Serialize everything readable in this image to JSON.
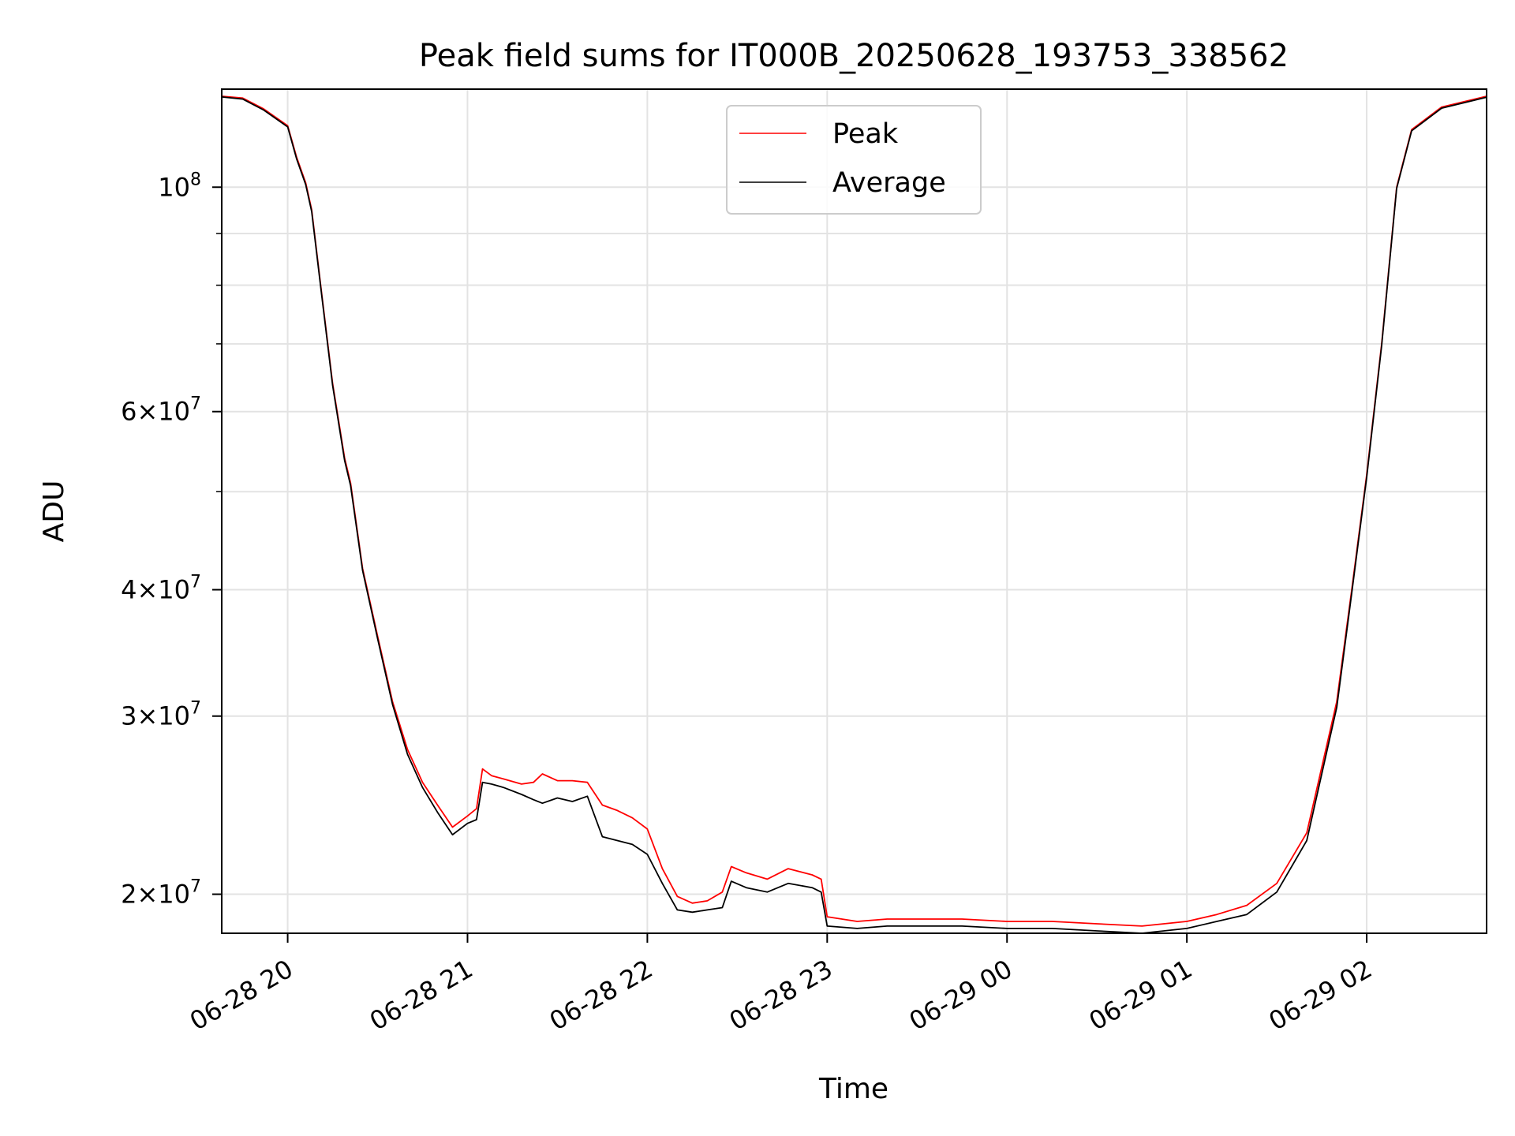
{
  "chart_data": {
    "type": "line",
    "title": "Peak field sums for IT000B_20250628_193753_338562",
    "xlabel": "Time",
    "ylabel": "ADU",
    "x_scale": "time",
    "y_scale": "log",
    "xlim": [
      "2025-06-28 19:38",
      "2025-06-29 02:40"
    ],
    "ylim": [
      18300000,
      125000000
    ],
    "grid": true,
    "legend_position": "top-center",
    "x_ticks": [
      {
        "value": "2025-06-28 20:00",
        "label": "06-28 20"
      },
      {
        "value": "2025-06-28 21:00",
        "label": "06-28 21"
      },
      {
        "value": "2025-06-28 22:00",
        "label": "06-28 22"
      },
      {
        "value": "2025-06-28 23:00",
        "label": "06-28 23"
      },
      {
        "value": "2025-06-29 00:00",
        "label": "06-29 00"
      },
      {
        "value": "2025-06-29 01:00",
        "label": "06-29 01"
      },
      {
        "value": "2025-06-29 02:00",
        "label": "06-29 02"
      }
    ],
    "y_ticks_major": [
      {
        "value": 20000000,
        "mant": "2",
        "exp": "7"
      },
      {
        "value": 30000000,
        "mant": "3",
        "exp": "7"
      },
      {
        "value": 40000000,
        "mant": "4",
        "exp": "7"
      },
      {
        "value": 60000000,
        "mant": "6",
        "exp": "7"
      },
      {
        "value": 100000000,
        "mant": "",
        "exp": "8"
      }
    ],
    "y_ticks_minor": [
      50000000,
      70000000,
      80000000,
      90000000
    ],
    "series": [
      {
        "name": "Peak",
        "color": "#ff0000",
        "points": [
          [
            "2025-06-28 19:38",
            123000000
          ],
          [
            "2025-06-28 19:45",
            122500000
          ],
          [
            "2025-06-28 19:52",
            119500000
          ],
          [
            "2025-06-28 20:00",
            115000000
          ],
          [
            "2025-06-28 20:03",
            107000000
          ],
          [
            "2025-06-28 20:06",
            101000000
          ],
          [
            "2025-06-28 20:08",
            95000000
          ],
          [
            "2025-06-28 20:11",
            80000000
          ],
          [
            "2025-06-28 20:15",
            64000000
          ],
          [
            "2025-06-28 20:19",
            54000000
          ],
          [
            "2025-06-28 20:21",
            51000000
          ],
          [
            "2025-06-28 20:25",
            42000000
          ],
          [
            "2025-06-28 20:30",
            36000000
          ],
          [
            "2025-06-28 20:35",
            31000000
          ],
          [
            "2025-06-28 20:40",
            27800000
          ],
          [
            "2025-06-28 20:45",
            25800000
          ],
          [
            "2025-06-28 20:50",
            24500000
          ],
          [
            "2025-06-28 20:55",
            23300000
          ],
          [
            "2025-06-28 21:00",
            23900000
          ],
          [
            "2025-06-28 21:03",
            24300000
          ],
          [
            "2025-06-28 21:05",
            26600000
          ],
          [
            "2025-06-28 21:08",
            26200000
          ],
          [
            "2025-06-28 21:12",
            26000000
          ],
          [
            "2025-06-28 21:18",
            25700000
          ],
          [
            "2025-06-28 21:22",
            25800000
          ],
          [
            "2025-06-28 21:25",
            26300000
          ],
          [
            "2025-06-28 21:30",
            25900000
          ],
          [
            "2025-06-28 21:35",
            25900000
          ],
          [
            "2025-06-28 21:40",
            25800000
          ],
          [
            "2025-06-28 21:45",
            24500000
          ],
          [
            "2025-06-28 21:50",
            24200000
          ],
          [
            "2025-06-28 21:55",
            23800000
          ],
          [
            "2025-06-28 22:00",
            23200000
          ],
          [
            "2025-06-28 22:05",
            21200000
          ],
          [
            "2025-06-28 22:10",
            19900000
          ],
          [
            "2025-06-28 22:15",
            19600000
          ],
          [
            "2025-06-28 22:20",
            19700000
          ],
          [
            "2025-06-28 22:25",
            20100000
          ],
          [
            "2025-06-28 22:28",
            21300000
          ],
          [
            "2025-06-28 22:33",
            21000000
          ],
          [
            "2025-06-28 22:40",
            20700000
          ],
          [
            "2025-06-28 22:47",
            21200000
          ],
          [
            "2025-06-28 22:55",
            20900000
          ],
          [
            "2025-06-28 22:58",
            20700000
          ],
          [
            "2025-06-28 23:00",
            19000000
          ],
          [
            "2025-06-28 23:10",
            18800000
          ],
          [
            "2025-06-28 23:20",
            18900000
          ],
          [
            "2025-06-28 23:30",
            18900000
          ],
          [
            "2025-06-28 23:45",
            18900000
          ],
          [
            "2025-06-29 00:00",
            18800000
          ],
          [
            "2025-06-29 00:15",
            18800000
          ],
          [
            "2025-06-29 00:30",
            18700000
          ],
          [
            "2025-06-29 00:45",
            18600000
          ],
          [
            "2025-06-29 01:00",
            18800000
          ],
          [
            "2025-06-29 01:10",
            19100000
          ],
          [
            "2025-06-29 01:20",
            19500000
          ],
          [
            "2025-06-29 01:30",
            20500000
          ],
          [
            "2025-06-29 01:40",
            23000000
          ],
          [
            "2025-06-29 01:50",
            31000000
          ],
          [
            "2025-06-29 01:55",
            40000000
          ],
          [
            "2025-06-29 02:00",
            52000000
          ],
          [
            "2025-06-29 02:05",
            70000000
          ],
          [
            "2025-06-29 02:10",
            100000000
          ],
          [
            "2025-06-29 02:15",
            114000000
          ],
          [
            "2025-06-29 02:25",
            120000000
          ],
          [
            "2025-06-29 02:40",
            123000000
          ]
        ]
      },
      {
        "name": "Average",
        "color": "#000000",
        "points": [
          [
            "2025-06-28 19:38",
            122800000
          ],
          [
            "2025-06-28 19:45",
            122200000
          ],
          [
            "2025-06-28 19:52",
            119200000
          ],
          [
            "2025-06-28 20:00",
            114700000
          ],
          [
            "2025-06-28 20:03",
            106600000
          ],
          [
            "2025-06-28 20:06",
            100600000
          ],
          [
            "2025-06-28 20:08",
            94600000
          ],
          [
            "2025-06-28 20:11",
            79700000
          ],
          [
            "2025-06-28 20:15",
            63700000
          ],
          [
            "2025-06-28 20:19",
            53700000
          ],
          [
            "2025-06-28 20:21",
            50700000
          ],
          [
            "2025-06-28 20:25",
            41800000
          ],
          [
            "2025-06-28 20:30",
            35800000
          ],
          [
            "2025-06-28 20:35",
            30800000
          ],
          [
            "2025-06-28 20:40",
            27500000
          ],
          [
            "2025-06-28 20:45",
            25500000
          ],
          [
            "2025-06-28 20:50",
            24100000
          ],
          [
            "2025-06-28 20:55",
            22900000
          ],
          [
            "2025-06-28 21:00",
            23500000
          ],
          [
            "2025-06-28 21:03",
            23700000
          ],
          [
            "2025-06-28 21:05",
            25800000
          ],
          [
            "2025-06-28 21:08",
            25700000
          ],
          [
            "2025-06-28 21:12",
            25500000
          ],
          [
            "2025-06-28 21:18",
            25100000
          ],
          [
            "2025-06-28 21:22",
            24800000
          ],
          [
            "2025-06-28 21:25",
            24600000
          ],
          [
            "2025-06-28 21:30",
            24900000
          ],
          [
            "2025-06-28 21:35",
            24700000
          ],
          [
            "2025-06-28 21:40",
            25000000
          ],
          [
            "2025-06-28 21:45",
            22800000
          ],
          [
            "2025-06-28 21:50",
            22600000
          ],
          [
            "2025-06-28 21:55",
            22400000
          ],
          [
            "2025-06-28 22:00",
            21900000
          ],
          [
            "2025-06-28 22:05",
            20500000
          ],
          [
            "2025-06-28 22:10",
            19300000
          ],
          [
            "2025-06-28 22:15",
            19200000
          ],
          [
            "2025-06-28 22:20",
            19300000
          ],
          [
            "2025-06-28 22:25",
            19400000
          ],
          [
            "2025-06-28 22:28",
            20600000
          ],
          [
            "2025-06-28 22:33",
            20300000
          ],
          [
            "2025-06-28 22:40",
            20100000
          ],
          [
            "2025-06-28 22:47",
            20500000
          ],
          [
            "2025-06-28 22:55",
            20300000
          ],
          [
            "2025-06-28 22:58",
            20100000
          ],
          [
            "2025-06-28 23:00",
            18600000
          ],
          [
            "2025-06-28 23:10",
            18500000
          ],
          [
            "2025-06-28 23:20",
            18600000
          ],
          [
            "2025-06-28 23:30",
            18600000
          ],
          [
            "2025-06-28 23:45",
            18600000
          ],
          [
            "2025-06-29 00:00",
            18500000
          ],
          [
            "2025-06-29 00:15",
            18500000
          ],
          [
            "2025-06-29 00:30",
            18400000
          ],
          [
            "2025-06-29 00:45",
            18300000
          ],
          [
            "2025-06-29 01:00",
            18500000
          ],
          [
            "2025-06-29 01:10",
            18800000
          ],
          [
            "2025-06-29 01:20",
            19100000
          ],
          [
            "2025-06-29 01:30",
            20100000
          ],
          [
            "2025-06-29 01:40",
            22600000
          ],
          [
            "2025-06-29 01:50",
            30600000
          ],
          [
            "2025-06-29 01:55",
            39700000
          ],
          [
            "2025-06-29 02:00",
            51700000
          ],
          [
            "2025-06-29 02:05",
            69700000
          ],
          [
            "2025-06-29 02:10",
            99700000
          ],
          [
            "2025-06-29 02:15",
            113700000
          ],
          [
            "2025-06-29 02:25",
            119700000
          ],
          [
            "2025-06-29 02:40",
            122700000
          ]
        ]
      }
    ]
  }
}
